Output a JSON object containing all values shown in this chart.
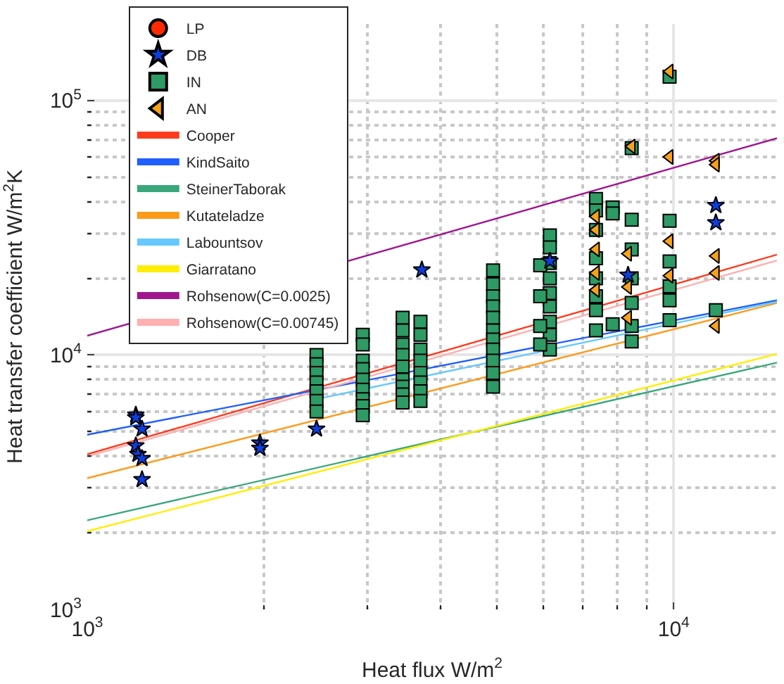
{
  "chart_data": {
    "type": "scatter",
    "xlabel": "Heat flux W/m$^{2}$",
    "ylabel": "Heat transfer coefficient W/m$^{2}$K",
    "log": "xy",
    "grid": true,
    "legend": "top left",
    "xlim": [
      1000,
      15000
    ],
    "ylim": [
      1000,
      200000
    ],
    "xticks": [
      {
        "value": 1000,
        "label": "10$^{3}$"
      },
      {
        "value": 10000,
        "label": "10$^{4}$"
      }
    ],
    "yticks": [
      {
        "value": 1000,
        "label": "10$^{3}$"
      },
      {
        "value": 10000,
        "label": "10$^{4}$"
      },
      {
        "value": 100000,
        "label": "10$^{5}$"
      }
    ],
    "series": [
      {
        "name": "LP",
        "marker": "circle",
        "color": "#ff2a00"
      },
      {
        "name": "DB",
        "marker": "star",
        "color": "#0a3fe0",
        "x": [
          1210,
          1210,
          1240,
          1210,
          1220,
          1240,
          1240,
          1970,
          1970,
          2460,
          3720,
          6150,
          11800,
          11800,
          8360
        ],
        "values": [
          5810,
          5670,
          5120,
          4400,
          4070,
          3920,
          3240,
          4510,
          4300,
          5120,
          21600,
          23400,
          38700,
          33100,
          20600
        ]
      },
      {
        "name": "IN",
        "marker": "square",
        "color": "#2e9a64",
        "x": [
          2460,
          2460,
          2460,
          2460,
          2460,
          2460,
          2460,
          2950,
          2950,
          2950,
          2950,
          2950,
          2950,
          2950,
          2950,
          2950,
          3450,
          3450,
          3450,
          3450,
          3450,
          3450,
          3450,
          3450,
          3450,
          3700,
          3700,
          3700,
          3700,
          3700,
          3700,
          3700,
          3700,
          4920,
          4920,
          4920,
          4920,
          4920,
          4920,
          4920,
          4920,
          4920,
          4920,
          4920,
          6150,
          6150,
          6150,
          6150,
          6150,
          6150,
          6150,
          6150,
          6150,
          5920,
          5920,
          5920,
          5920,
          7370,
          7370,
          7370,
          7370,
          7370,
          7370,
          7370,
          7370,
          7870,
          7870,
          7870,
          8480,
          8480,
          8480,
          8480,
          8480,
          8480,
          8480,
          9840,
          9840,
          9840,
          9840,
          9840,
          9840,
          11800
        ],
        "values": [
          10000,
          9200,
          8500,
          7800,
          7200,
          6600,
          6000,
          12000,
          11000,
          9500,
          8800,
          8000,
          7300,
          6700,
          6300,
          5800,
          14000,
          12500,
          11000,
          10000,
          9000,
          8000,
          7500,
          7000,
          6500,
          13500,
          12000,
          10500,
          9500,
          8500,
          7800,
          7200,
          6600,
          21500,
          19000,
          17000,
          15500,
          14000,
          12500,
          11500,
          10500,
          9500,
          8500,
          7500,
          29500,
          26500,
          23000,
          20000,
          17500,
          15500,
          13500,
          12000,
          10500,
          22500,
          17000,
          13000,
          11000,
          41000,
          37000,
          31000,
          24000,
          20000,
          17000,
          15000,
          12500,
          38000,
          36000,
          13200,
          34000,
          26000,
          20000,
          16000,
          13000,
          11300,
          65000,
          124000,
          33700,
          23300,
          18600,
          16400,
          13700,
          15000
        ]
      },
      {
        "name": "AN",
        "marker": "triangle",
        "color": "#f7a21b",
        "x": [
          7370,
          7370,
          7370,
          7370,
          7370,
          8360,
          8360,
          8360,
          8480,
          9840,
          9840,
          9840,
          9840,
          11800,
          11800,
          11800,
          11800,
          11800
        ],
        "values": [
          35000,
          31000,
          26000,
          21000,
          18000,
          25000,
          18500,
          14000,
          66000,
          130000,
          60000,
          28000,
          20500,
          58000,
          56000,
          24500,
          21000,
          13000
        ]
      },
      {
        "name": "Cooper",
        "type": "line",
        "color": "#ff3b1f",
        "x": [
          1000,
          15000
        ],
        "values": [
          4070,
          24800
        ]
      },
      {
        "name": "KindSaito",
        "type": "line",
        "color": "#1f5fff",
        "x": [
          1000,
          15000
        ],
        "values": [
          4860,
          16400
        ]
      },
      {
        "name": "SteinerTaborak",
        "type": "line",
        "color": "#3aa77a",
        "x": [
          1000,
          15000
        ],
        "values": [
          2240,
          9330
        ]
      },
      {
        "name": "Kutateladze",
        "type": "line",
        "color": "#ff9a1a",
        "x": [
          1000,
          15000
        ],
        "values": [
          3280,
          16000
        ]
      },
      {
        "name": "Labountsov",
        "type": "line",
        "color": "#66c8ff",
        "x": [
          2500,
          15000
        ],
        "values": [
          6760,
          16200
        ]
      },
      {
        "name": "Giarratano",
        "type": "line",
        "color": "#ffee00",
        "x": [
          1000,
          15000
        ],
        "values": [
          2030,
          10100
        ]
      },
      {
        "name": "Rohsenow(C=0.0025)",
        "type": "line",
        "color": "#a0168f",
        "x": [
          1000,
          15000
        ],
        "values": [
          11900,
          71100
        ]
      },
      {
        "name": "Rohsenow(C=0.00745)",
        "type": "line",
        "color": "#ffb0b0",
        "x": [
          1000,
          15000
        ],
        "values": [
          3990,
          23500
        ]
      }
    ]
  }
}
